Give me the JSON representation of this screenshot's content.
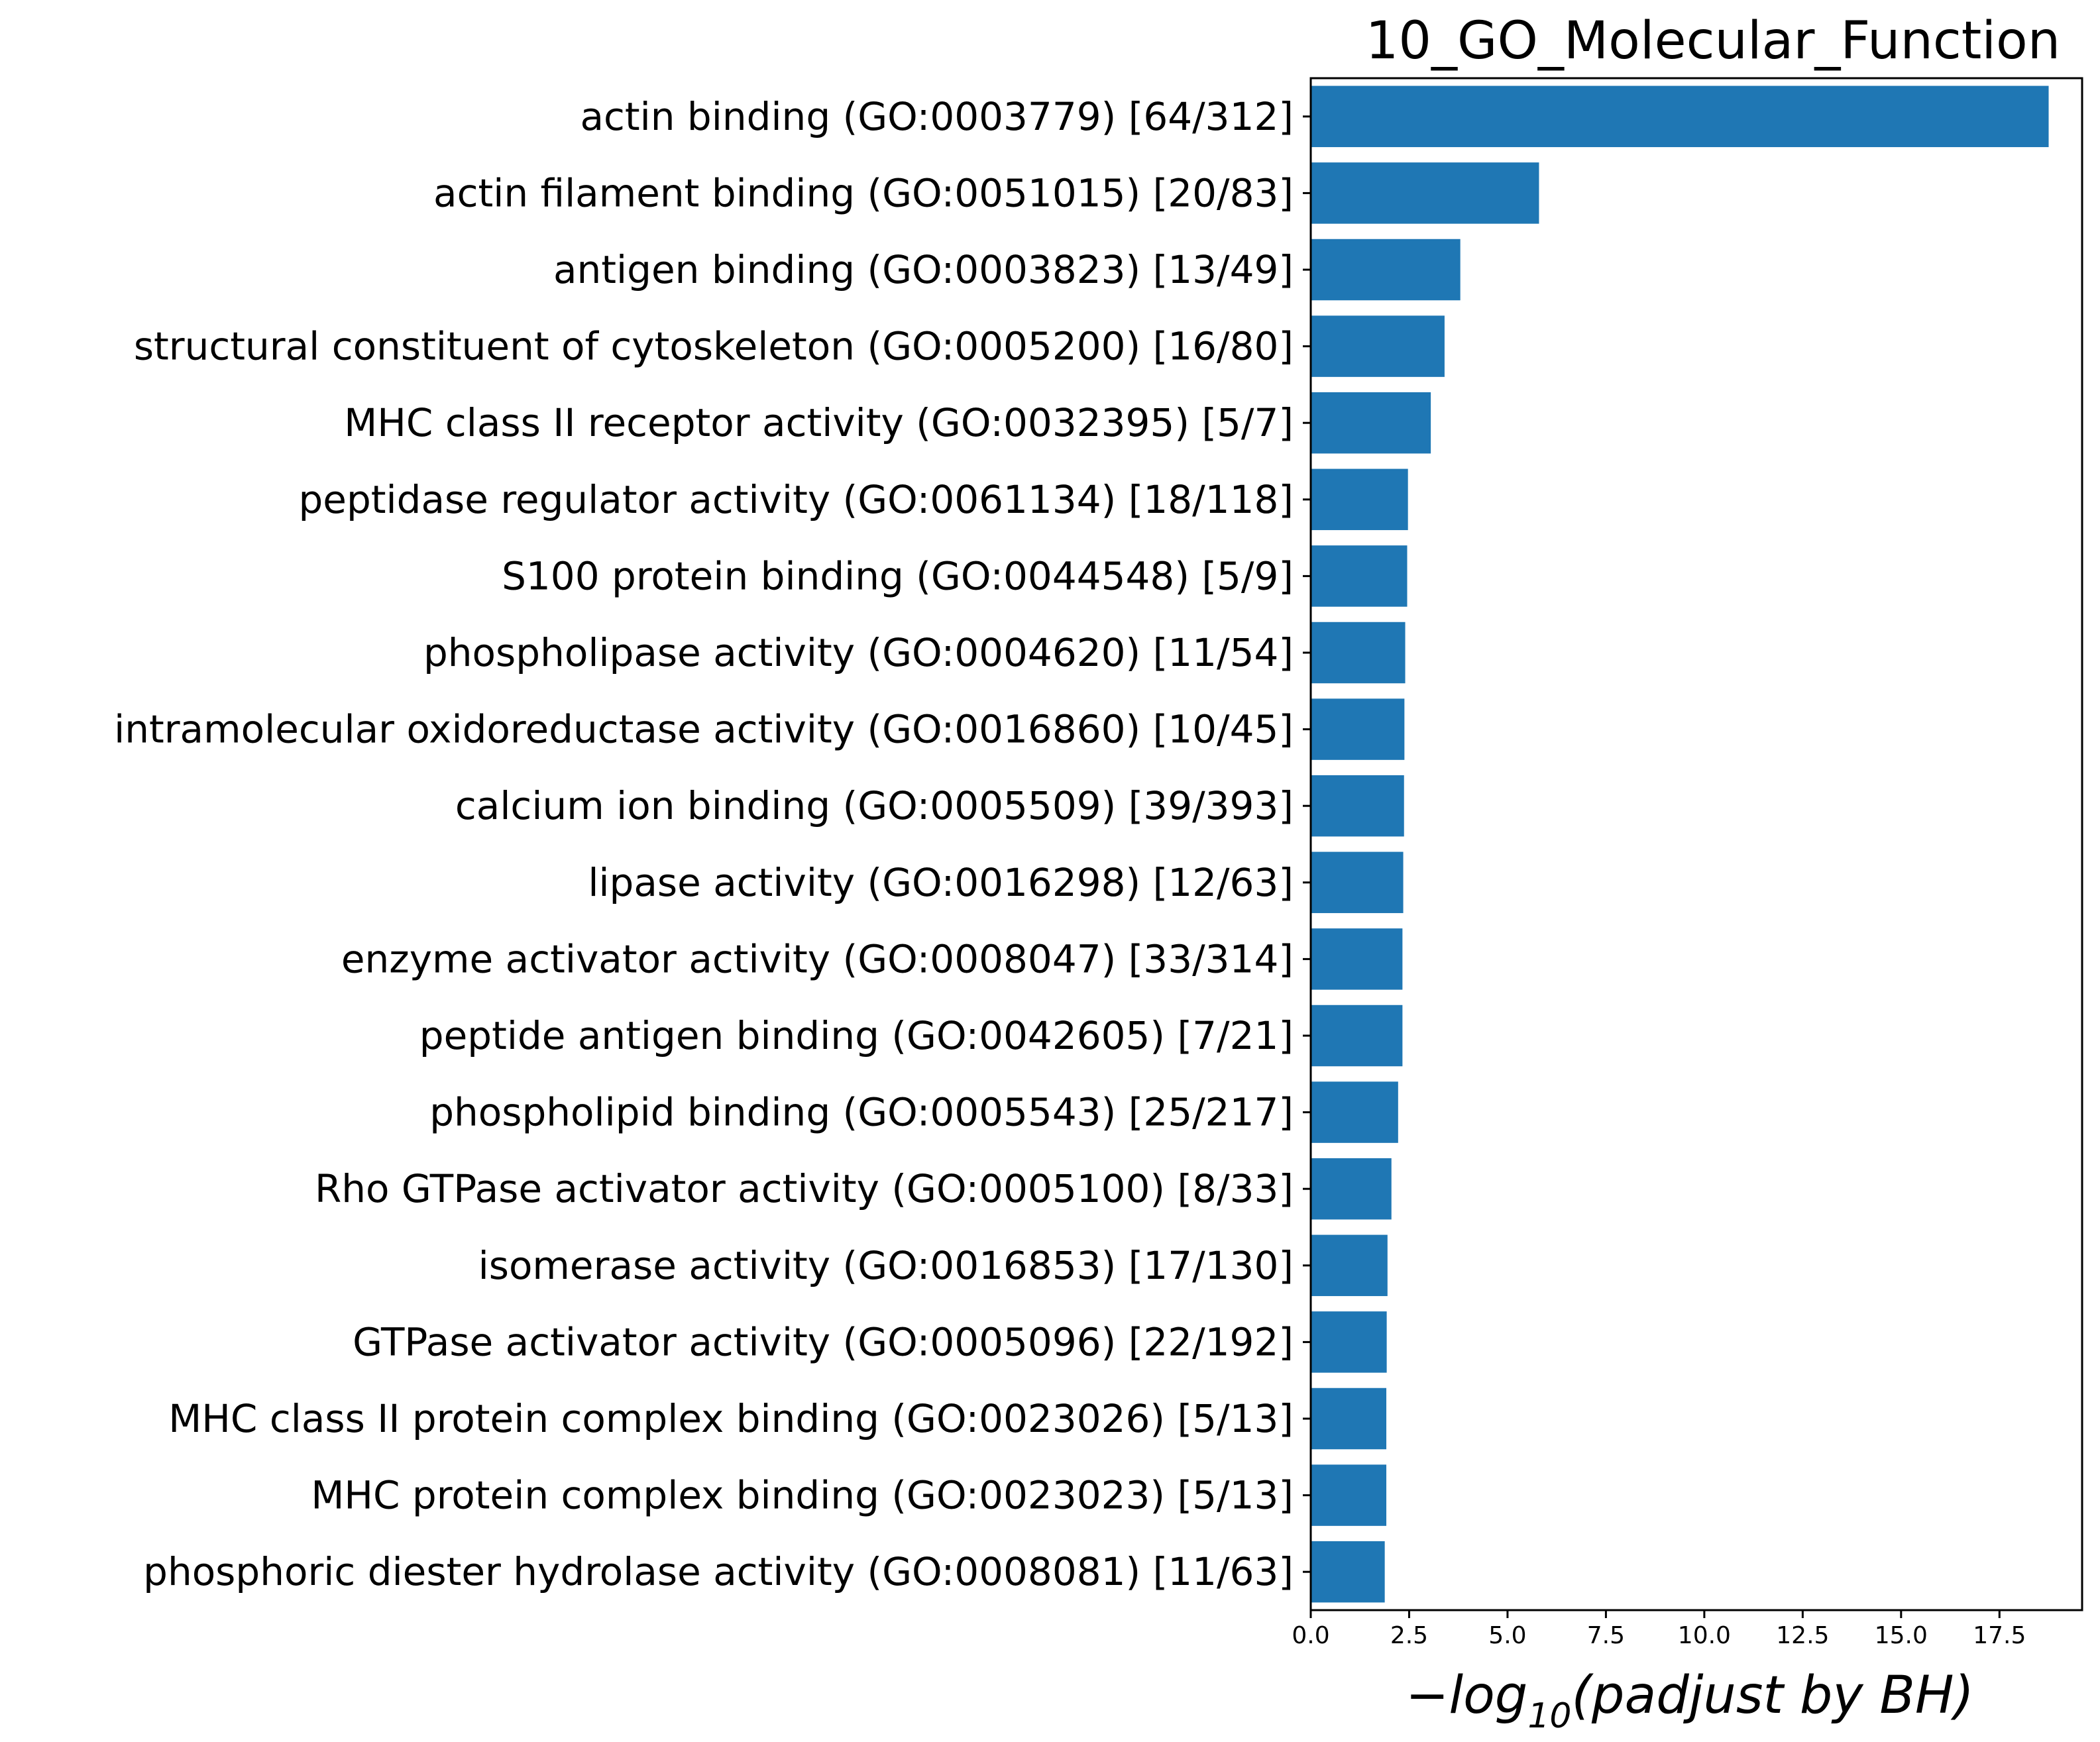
{
  "chart_data": {
    "type": "bar",
    "orientation": "horizontal",
    "title": "10_GO_Molecular_Function",
    "xlabel": {
      "prefix": "−log",
      "subscript": "10",
      "suffix": "(padjust by BH)"
    },
    "ylabel": "",
    "xlim": [
      0,
      19.6
    ],
    "xticks": [
      0.0,
      2.5,
      5.0,
      7.5,
      10.0,
      12.5,
      15.0,
      17.5
    ],
    "xtick_labels": [
      "0.0",
      "2.5",
      "5.0",
      "7.5",
      "10.0",
      "12.5",
      "15.0",
      "17.5"
    ],
    "grid": false,
    "bar_color": "#1f77b4",
    "categories": [
      "actin binding (GO:0003779) [64/312]",
      "actin filament binding (GO:0051015) [20/83]",
      "antigen binding (GO:0003823) [13/49]",
      "structural constituent of cytoskeleton (GO:0005200) [16/80]",
      "MHC class II receptor activity (GO:0032395) [5/7]",
      "peptidase regulator activity (GO:0061134) [18/118]",
      "S100 protein binding (GO:0044548) [5/9]",
      "phospholipase activity (GO:0004620) [11/54]",
      "intramolecular oxidoreductase activity (GO:0016860) [10/45]",
      "calcium ion binding (GO:0005509) [39/393]",
      "lipase activity (GO:0016298) [12/63]",
      "enzyme activator activity (GO:0008047) [33/314]",
      "peptide antigen binding (GO:0042605) [7/21]",
      "phospholipid binding (GO:0005543) [25/217]",
      "Rho GTPase activator activity (GO:0005100) [8/33]",
      "isomerase activity (GO:0016853) [17/130]",
      "GTPase activator activity (GO:0005096) [22/192]",
      "MHC class II protein complex binding (GO:0023026) [5/13]",
      "MHC protein complex binding (GO:0023023) [5/13]",
      "phosphoric diester hydrolase activity (GO:0008081) [11/63]"
    ],
    "values": [
      18.75,
      5.8,
      3.8,
      3.4,
      3.05,
      2.47,
      2.45,
      2.4,
      2.38,
      2.37,
      2.35,
      2.33,
      2.33,
      2.22,
      2.05,
      1.95,
      1.93,
      1.92,
      1.92,
      1.88
    ]
  }
}
